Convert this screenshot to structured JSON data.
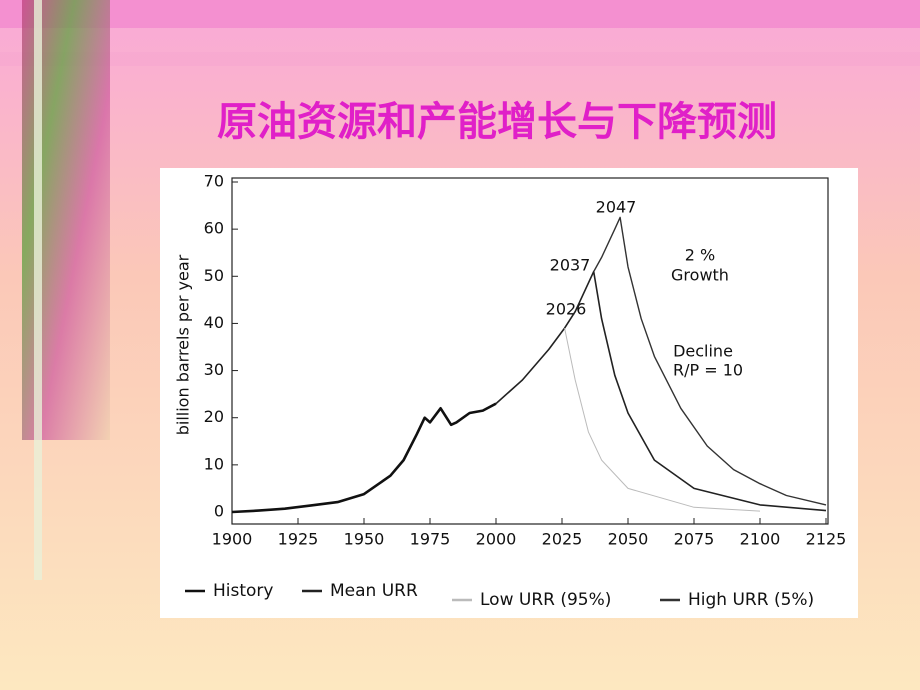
{
  "slide_title": "原油资源和产能增长与下降预测",
  "chart_data": {
    "type": "line",
    "y_label": "billion barrels per year",
    "annotations": [
      "2026",
      "2037",
      "2047",
      "2 %",
      "Growth",
      "Decline",
      "R/P = 10"
    ],
    "xlim": [
      1900,
      2125
    ],
    "xticks": [
      1900,
      1925,
      1950,
      1975,
      2000,
      2025,
      2050,
      2075,
      2100,
      2125
    ],
    "ylim": [
      0,
      70
    ],
    "yticks": [
      0,
      10,
      20,
      30,
      40,
      50,
      60,
      70
    ],
    "series": [
      {
        "name": "History",
        "color": "#111111",
        "x": [
          1900,
          1910,
          1920,
          1930,
          1940,
          1950,
          1960,
          1965,
          1970,
          1973,
          1975,
          1979,
          1983,
          1985,
          1990,
          1995,
          2000
        ],
        "values": [
          0,
          0.3,
          0.7,
          1.4,
          2.1,
          3.8,
          7.7,
          11,
          16.5,
          20,
          19,
          22,
          18.5,
          19,
          21,
          21.5,
          23
        ]
      },
      {
        "name": "Mean URR",
        "color": "#222222",
        "x": [
          2000,
          2010,
          2020,
          2026,
          2030,
          2037,
          2040,
          2045,
          2050,
          2060,
          2075,
          2100,
          2125
        ],
        "values": [
          23,
          28,
          34.5,
          39,
          42.5,
          51,
          41,
          29,
          21,
          11,
          5,
          1.5,
          0.3
        ]
      },
      {
        "name": "Low URR (95%)",
        "color": "#bbbbbb",
        "x": [
          2026,
          2030,
          2035,
          2040,
          2050,
          2075,
          2100
        ],
        "values": [
          39,
          28,
          17,
          11,
          5,
          1,
          0.2
        ]
      },
      {
        "name": "High URR (5%)",
        "color": "#333333",
        "x": [
          2037,
          2040,
          2045,
          2047,
          2050,
          2055,
          2060,
          2070,
          2080,
          2090,
          2100,
          2110,
          2125
        ],
        "values": [
          51,
          54,
          60,
          62.5,
          52,
          41,
          33,
          22,
          14,
          9,
          6,
          3.5,
          1.5
        ]
      }
    ]
  }
}
